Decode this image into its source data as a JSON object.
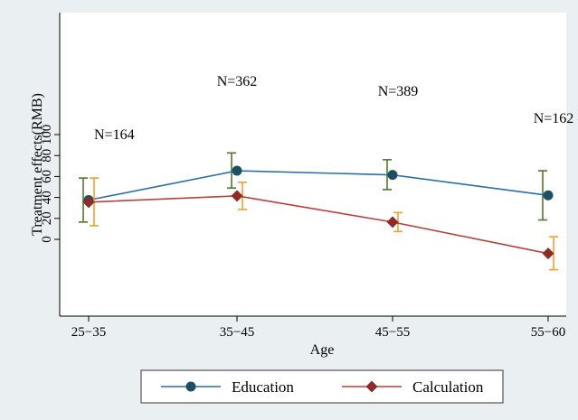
{
  "chart_data": {
    "type": "line",
    "title": "",
    "xlabel": "Age",
    "ylabel": "Treatment effects(RMB)",
    "categories": [
      "25−35",
      "35−45",
      "45−55",
      "55−60"
    ],
    "ylim": [
      -30,
      100
    ],
    "yticks": [
      0,
      20,
      40,
      60,
      80,
      100
    ],
    "grid": false,
    "legend_position": "bottom",
    "annotations": [
      "N=164",
      "N=362",
      "N=389",
      "N=162"
    ],
    "series": [
      {
        "name": "Education",
        "marker": "circle",
        "color": "#2a6fa8",
        "marker_color": "#1d4f62",
        "error_color": "#4f7a2a",
        "values": [
          37.5,
          65.5,
          61.5,
          42
        ],
        "ci_low": [
          16.5,
          49,
          47.5,
          18.5
        ],
        "ci_high": [
          58.5,
          82.5,
          76,
          65.5
        ]
      },
      {
        "name": "Calculation",
        "marker": "diamond",
        "color": "#b8413a",
        "marker_color": "#8e2b26",
        "error_color": "#f0a030",
        "values": [
          35.5,
          41.5,
          16.5,
          -13.5
        ],
        "ci_low": [
          13,
          28.5,
          7.5,
          -29
        ],
        "ci_high": [
          58.5,
          54.5,
          25.5,
          2.5
        ]
      }
    ]
  }
}
